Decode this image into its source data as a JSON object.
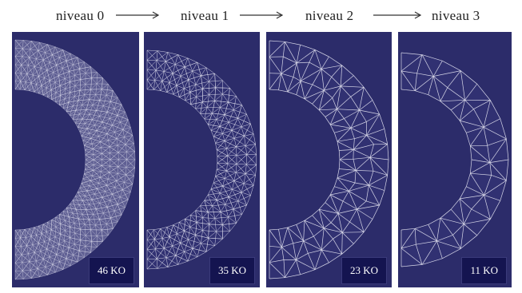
{
  "levels": [
    {
      "label": "niveau 0",
      "size": "46 KO",
      "density": 4.0
    },
    {
      "label": "niveau 1",
      "size": "35 KO",
      "density": 2.6
    },
    {
      "label": "niveau 2",
      "size": "23 KO",
      "density": 1.5
    },
    {
      "label": "niveau 3",
      "size": "11 KO",
      "density": 0.7
    }
  ],
  "colors": {
    "panel": "#2c2c6a",
    "mesh": "#e8e8f4",
    "badge": "#141450"
  }
}
